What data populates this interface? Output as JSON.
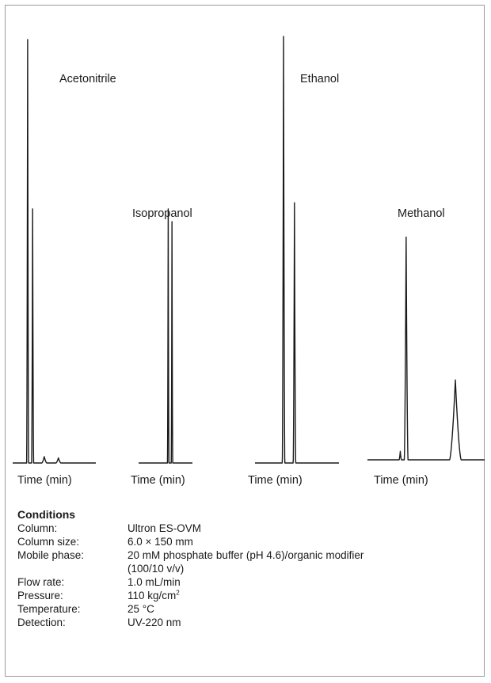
{
  "chart_data": [
    {
      "type": "line",
      "title": "Acetonitrile",
      "xlabel": "Time (min)",
      "peaks": [
        {
          "retention_frac": 0.18,
          "height": 1.0,
          "width_frac": 0.012
        },
        {
          "retention_frac": 0.24,
          "height": 0.6,
          "width_frac": 0.012
        },
        {
          "retention_frac": 0.38,
          "height": 0.015,
          "width_frac": 0.03
        },
        {
          "retention_frac": 0.55,
          "height": 0.012,
          "width_frac": 0.03
        }
      ]
    },
    {
      "type": "line",
      "title": "Isopropanol",
      "xlabel": "Time (min)",
      "peaks": [
        {
          "retention_frac": 0.55,
          "height": 0.6,
          "width_frac": 0.014
        },
        {
          "retention_frac": 0.62,
          "height": 0.57,
          "width_frac": 0.014
        }
      ]
    },
    {
      "type": "line",
      "title": "Ethanol",
      "xlabel": "Time (min)",
      "peaks": [
        {
          "retention_frac": 0.34,
          "height": 1.0,
          "width_frac": 0.015
        },
        {
          "retention_frac": 0.47,
          "height": 0.61,
          "width_frac": 0.015
        }
      ]
    },
    {
      "type": "line",
      "title": "Methanol",
      "xlabel": "Time (min)",
      "peaks": [
        {
          "retention_frac": 0.28,
          "height": 0.02,
          "width_frac": 0.01
        },
        {
          "retention_frac": 0.33,
          "height": 0.53,
          "width_frac": 0.016
        },
        {
          "retention_frac": 0.75,
          "height": 0.19,
          "width_frac": 0.05
        }
      ]
    }
  ],
  "conditions": {
    "title": "Conditions",
    "rows": [
      {
        "key": "Column:",
        "value": "Ultron ES-OVM",
        "value2": ""
      },
      {
        "key": "Column size:",
        "value": "6.0 × 150 mm",
        "value2": ""
      },
      {
        "key": "Mobile phase:",
        "value": "20 mM phosphate buffer (pH 4.6)/organic modifier",
        "value2": "(100/10 v/v)"
      },
      {
        "key": "Flow rate:",
        "value": "1.0 mL/min",
        "value2": ""
      },
      {
        "key": "Pressure:",
        "value": "110 kg/cm",
        "sup": "2",
        "value2": ""
      },
      {
        "key": "Temperature:",
        "value": "25 °C",
        "value2": ""
      },
      {
        "key": "Detection:",
        "value": "UV-220 nm",
        "value2": ""
      }
    ]
  },
  "colors": {
    "trace": "#1a1a1a",
    "frame": "#9a9a9a"
  }
}
